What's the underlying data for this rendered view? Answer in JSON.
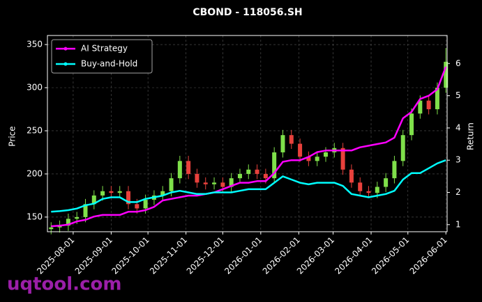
{
  "chart_data": {
    "type": "candlestick",
    "title": "CBOND - 118056.SH",
    "ylabel": "Price",
    "y2label": "Return",
    "x": [
      "2025-07-14",
      "2025-07-21",
      "2025-07-28",
      "2025-08-04",
      "2025-08-11",
      "2025-08-18",
      "2025-08-25",
      "2025-09-01",
      "2025-09-08",
      "2025-09-15",
      "2025-09-22",
      "2025-09-29",
      "2025-10-06",
      "2025-10-13",
      "2025-10-20",
      "2025-10-27",
      "2025-11-03",
      "2025-11-10",
      "2025-11-17",
      "2025-11-24",
      "2025-12-01",
      "2025-12-08",
      "2025-12-15",
      "2025-12-22",
      "2025-12-29",
      "2026-01-05",
      "2026-01-12",
      "2026-01-19",
      "2026-01-26",
      "2026-02-02",
      "2026-02-09",
      "2026-02-16",
      "2026-02-23",
      "2026-03-02",
      "2026-03-09",
      "2026-03-16",
      "2026-03-23",
      "2026-03-30",
      "2026-04-06",
      "2026-04-13",
      "2026-04-20",
      "2026-04-27",
      "2026-05-04",
      "2026-05-11",
      "2026-05-18",
      "2026-05-25",
      "2026-06-01"
    ],
    "open": [
      136,
      138,
      140,
      148,
      150,
      165,
      175,
      180,
      178,
      180,
      165,
      160,
      170,
      175,
      180,
      195,
      215,
      200,
      190,
      188,
      190,
      185,
      195,
      200,
      205,
      200,
      195,
      225,
      245,
      235,
      220,
      215,
      220,
      225,
      230,
      205,
      190,
      180,
      178,
      185,
      195,
      215,
      245,
      270,
      285,
      275,
      300
    ],
    "high": [
      144,
      146,
      154,
      156,
      171,
      181,
      186,
      186,
      186,
      186,
      171,
      176,
      181,
      186,
      201,
      221,
      221,
      206,
      196,
      196,
      196,
      201,
      206,
      211,
      211,
      206,
      231,
      251,
      251,
      241,
      226,
      226,
      231,
      236,
      236,
      211,
      196,
      186,
      191,
      201,
      221,
      251,
      276,
      291,
      291,
      306,
      346
    ],
    "low": [
      130,
      132,
      134,
      142,
      144,
      159,
      169,
      172,
      172,
      159,
      154,
      154,
      164,
      169,
      174,
      189,
      194,
      184,
      182,
      182,
      179,
      179,
      189,
      194,
      194,
      189,
      189,
      219,
      229,
      214,
      209,
      209,
      214,
      219,
      199,
      184,
      174,
      172,
      172,
      179,
      189,
      209,
      239,
      264,
      269,
      269,
      294
    ],
    "close": [
      138,
      140,
      148,
      150,
      165,
      175,
      180,
      178,
      180,
      165,
      160,
      170,
      175,
      180,
      195,
      215,
      200,
      190,
      188,
      190,
      185,
      195,
      200,
      205,
      200,
      195,
      225,
      245,
      235,
      220,
      215,
      220,
      225,
      230,
      205,
      190,
      180,
      178,
      185,
      195,
      215,
      245,
      270,
      285,
      275,
      300,
      330
    ],
    "up_color": "#7fe04a",
    "down_color": "#e8413c",
    "series": [
      {
        "name": "AI Strategy",
        "color": "#ff00ff",
        "axis": "y2",
        "values": [
          0.95,
          0.97,
          1.0,
          1.1,
          1.15,
          1.25,
          1.3,
          1.3,
          1.3,
          1.4,
          1.4,
          1.45,
          1.55,
          1.75,
          1.8,
          1.85,
          1.9,
          1.9,
          1.95,
          2.0,
          2.1,
          2.2,
          2.3,
          2.3,
          2.35,
          2.35,
          2.6,
          2.95,
          3.0,
          3.0,
          3.1,
          3.25,
          3.3,
          3.3,
          3.3,
          3.3,
          3.4,
          3.45,
          3.5,
          3.55,
          3.7,
          4.3,
          4.5,
          4.9,
          5.0,
          5.2,
          5.9
        ]
      },
      {
        "name": "Buy-and-Hold",
        "color": "#00ffff",
        "axis": "y2",
        "values": [
          1.4,
          1.42,
          1.45,
          1.5,
          1.6,
          1.65,
          1.8,
          1.85,
          1.85,
          1.7,
          1.7,
          1.8,
          1.85,
          1.9,
          2.0,
          2.05,
          2.0,
          1.95,
          1.95,
          2.0,
          2.0,
          2.0,
          2.05,
          2.1,
          2.1,
          2.1,
          2.3,
          2.5,
          2.4,
          2.3,
          2.25,
          2.3,
          2.3,
          2.3,
          2.2,
          1.95,
          1.9,
          1.85,
          1.9,
          1.95,
          2.05,
          2.4,
          2.6,
          2.6,
          2.75,
          2.9,
          3.0
        ]
      }
    ],
    "xlim": [
      "2025-07-11",
      "2026-06-02"
    ],
    "xticks": [
      "2025-08-01",
      "2025-09-01",
      "2025-10-01",
      "2025-11-01",
      "2025-12-01",
      "2026-01-01",
      "2026-02-01",
      "2026-03-01",
      "2026-04-01",
      "2026-05-01",
      "2026-06-01"
    ],
    "ylim": [
      133,
      360.5
    ],
    "yticks": [
      150,
      200,
      250,
      300,
      350
    ],
    "y2lim": [
      0.78,
      6.87
    ],
    "y2ticks": [
      1,
      2,
      3,
      4,
      5,
      6
    ],
    "grid": true,
    "legend": "upper left"
  },
  "watermark": "uqtool.com"
}
